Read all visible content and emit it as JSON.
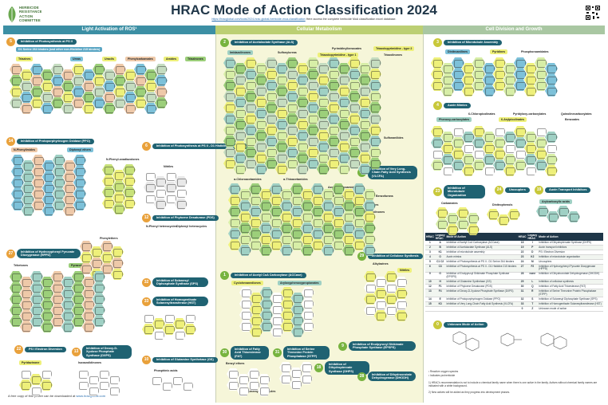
{
  "logo": {
    "lines": [
      "HERBICIDE",
      "RESISTANCE",
      "ACTION",
      "COMMITTEE"
    ]
  },
  "header": {
    "title": "HRAC Mode of Action Classification 2024",
    "subtitle_link": "https://hracglobal.com/tools/2024-hrac-global-herbicide-moa-classification",
    "subtitle_rest": "Here access the complete herbicide MoA classification excel database."
  },
  "bands": {
    "light": "Light Activation of ROS¹",
    "cell": "Cellular Metabolism",
    "division": "Cell Division and Growth"
  },
  "moa": [
    {
      "key": "5",
      "label": "Inhibition of Photosynthesis at PS II"
    },
    {
      "key": "5b",
      "label": "D1 Serine 264 binders (and other non-Histidine 215 binders)"
    },
    {
      "key": "14",
      "label": "Inhibition of Protoporphyrinogen Oxidase (PPO)"
    },
    {
      "key": "6",
      "label": "Inhibition of Photosynthesis at PS II - D1 Histidine 215 binders"
    },
    {
      "key": "12",
      "label": "Inhibition of Phytoene Desaturase (PDS)"
    },
    {
      "key": "27",
      "label": "Inhibition of Hydroxyphenyl Pyruvate Dioxygenase (HPPD)"
    },
    {
      "key": "32",
      "label": "Inhibition of Solanesyl Diphosphate Synthase (SPS)"
    },
    {
      "key": "33",
      "label": "Inhibition of Homogentisate Solanesyltransferase (HST)"
    },
    {
      "key": "22",
      "label": "PS I Electron Diversion"
    },
    {
      "key": "13",
      "label": "Inhibition of Deoxy-D-Xyulose Phosphate Synthase (DXPS)"
    },
    {
      "key": "10",
      "label": "Inhibition of Glutamine Synthetase (GS)"
    },
    {
      "key": "2",
      "label": "Inhibition of Acetolactate Synthase (ALS)"
    },
    {
      "key": "15",
      "label": "Inhibition of Very Long-Chain Fatty Acid Synthesis (VLCFA)"
    },
    {
      "key": "29",
      "label": "Inhibition of Cellulose Synthesis"
    },
    {
      "key": "1",
      "label": "Inhibition of Acetyl CoA Carboxylase (ACCase)"
    },
    {
      "key": "30",
      "label": "Inhibition of Fatty Acid Thioesterase (FAT)"
    },
    {
      "key": "31",
      "label": "Inhibition of Serine Threonine Protein Phosphatase (STPP)"
    },
    {
      "key": "9",
      "label": "Inhibition of Enolpyruvyl Shikimate Phosphate Synthase (EPSPS)"
    },
    {
      "key": "18",
      "label": "Inhibition of Dihydropteroate Synthase (DHPS)"
    },
    {
      "key": "28",
      "label": "Inhibition of Dihydroorotate Dehydrogenase (DHODH)"
    },
    {
      "key": "3",
      "label": "Inhibition of Microtubule Assembly"
    },
    {
      "key": "4",
      "label": "Auxin Mimics"
    },
    {
      "key": "23",
      "label": "Inhibition of Microtubule Organization"
    },
    {
      "key": "24",
      "label": "Uncouplers"
    },
    {
      "key": "19",
      "label": "Auxin Transport Inhibitors"
    },
    {
      "key": "0",
      "label": "Unknown Mode of Action"
    }
  ],
  "chips": {
    "triazines": "Triazines",
    "ureas": "Ureas",
    "uracils": "Uracils",
    "phenylcarbamates": "Phenylcarbamates",
    "amides": "Amides",
    "triazinones": "Triazinones",
    "n_phenylimides": "N-Phenylimides",
    "diphenyl_ethers": "Diphenyl ethers",
    "n_phenyl_oxadiazolones": "N-Phenyl-oxadiazolones",
    "nitriles": "Nitriles",
    "n_phenyl_heterocycles": "N-Phenyl heterocycles",
    "diphenyl_heterocycles": "Diphenyl heterocycles",
    "phenoxypyridazines": "Phenylethers",
    "triketones": "Triketones",
    "pyrazoles": "Pyrazoles",
    "pyridazinone": "Pyridazinone",
    "isoxazolidinones": "Isoxazolidinones",
    "phosphinic_acids": "Phosphinic acids",
    "imidazolinones": "Imidazolinones",
    "sulfonylureas": "Sulfonylureas",
    "pyrimidinylbenzoates": "Pyrimidinylbenzoates",
    "triazolopyrimidine_type2": "Triazolopyrimidine - type 2",
    "triazolopyrimidine_type1": "Triazolopyrimidine - type 1",
    "triazolinones": "Triazolinones",
    "sulfonanilides": "Sulfonanilides",
    "a_chloroacetamides": "α-Chloroacetamides",
    "a_thioacetamides": "α-Thioacetamides",
    "a_oxyacetamides": "α-Oxyacetamides",
    "tetrazolinones": "Tetrazolinones",
    "thiocarbamates": "Thiocarbamates",
    "azolyl_carboxamides": "Azolyl carboxamides",
    "isoxazolines": "Isoxazolines",
    "benzofurans": "Benzofurans",
    "oxiranes": "Oxiranes",
    "alkylazines": "Alkylazines",
    "nitriles2": "Nitriles",
    "cyclohexanediones": "Cyclohexanediones",
    "aryloxyphenoxy": "Aryloxyphenoxypropionates",
    "benzyl_ethers": "Benzyl ethers",
    "gem_dimethyl": "gem-Dimethylbenzamides",
    "dinitroanilines": "Dinitroanilines",
    "pyridines": "Pyridines",
    "phosphoroamidates": "Phosphoroamidates",
    "chloro_carboxylic": "6-Chloropicolinates",
    "pyridinyloxy": "Pyridyloxy-carboxylates",
    "quinoline": "Quinolinecarboxylates",
    "phenoxy_carboxylates": "Phenoxy-carboxylates",
    "aryl_picolinates": "6-Arylpicolinates",
    "benzoates": "Benzoates",
    "carbamates": "Carbamates",
    "dinitrophenols": "Dinitrophenols",
    "aryl_carboxylic": "Arylcarboxylic acids"
  },
  "table": {
    "headers": [
      "HRAC",
      "Legacy HRAC",
      "Mode of Action",
      "HRAC",
      "Legacy HRAC",
      "Mode of Action"
    ],
    "rows": [
      [
        "1",
        "A",
        "Inhibition of Acetyl CoA Carboxylase (ACCase)",
        "18",
        "I",
        "Inhibition of Dihydropteroate Synthase (DHPS)"
      ],
      [
        "2",
        "B",
        "Inhibition of Acetolactate Synthase (ALS)",
        "19",
        "P",
        "Auxin transport inhibitors"
      ],
      [
        "3",
        "K1",
        "Inhibition of microtubule assembly",
        "22",
        "D",
        "PS I Electron Diversion"
      ],
      [
        "4",
        "O",
        "Auxin mimics",
        "23",
        "K2",
        "Inhibition of microtubule organization"
      ],
      [
        "5",
        "C1 C2",
        "Inhibition of Photosynthesis at PS II - D1 Serine 264 binders",
        "24",
        "M",
        "Uncouplers"
      ],
      [
        "6",
        "C3",
        "Inhibition of Photosynthesis at PS II - D1 Histidine 215 binders",
        "27",
        "F2",
        "Inhibition of Hydroxyphenyl Pyruvate Dioxygenase (HPPD)"
      ],
      [
        "9",
        "G",
        "Inhibition of Enolpyruvyl Shikimate Phosphate Synthase (EPSPS)",
        "28",
        "none",
        "Inhibition of Dihydroorotate Dehydrogenase (DHODH)"
      ],
      [
        "10",
        "H",
        "Inhibition of Glutamine Synthetase (GS)",
        "29",
        "L",
        "Inhibition of cellulose synthesis"
      ],
      [
        "12",
        "F1",
        "Inhibition of Phytoene Desaturase (PDS)",
        "30",
        "Q",
        "Inhibition of Fatty Acid Thioesterase (FAT)"
      ],
      [
        "13",
        "F4",
        "Inhibition of Deoxy-D-Xyulose Phosphate Synthase (DXPS)",
        "31",
        "R",
        "Inhibition of Serine Threonine Protein Phosphatase (STPP)"
      ],
      [
        "14",
        "E",
        "Inhibition of Protoporphyrinogen Oxidase (PPO)",
        "32",
        "S",
        "Inhibition of Solanesyl Diphosphate Synthase (SPS)"
      ],
      [
        "15",
        "K3",
        "Inhibition of Very Long-Chain Fatty Acid Synthesis (VLCFA)",
        "33",
        "T",
        "Inhibition of Homogentisate Solanesyltransferase (HST)"
      ],
      [
        "",
        "",
        "",
        "0",
        "Z",
        "Unknown mode of action"
      ]
    ]
  },
  "notes": {
    "foot1": "¹ Reactive oxygen species",
    "foot2": "² Indicates proherbicide",
    "foot3": "1) HRAC's recommendation is not to include a chemical family name when there is one active in the family. Actives without chemical family names are indicated with a white background.",
    "foot4": "2) New actives will be added as they progress into development phases."
  },
  "footer": {
    "text": "A free copy of this poster can be downloaded at",
    "link": "www.hracglobal.com"
  }
}
